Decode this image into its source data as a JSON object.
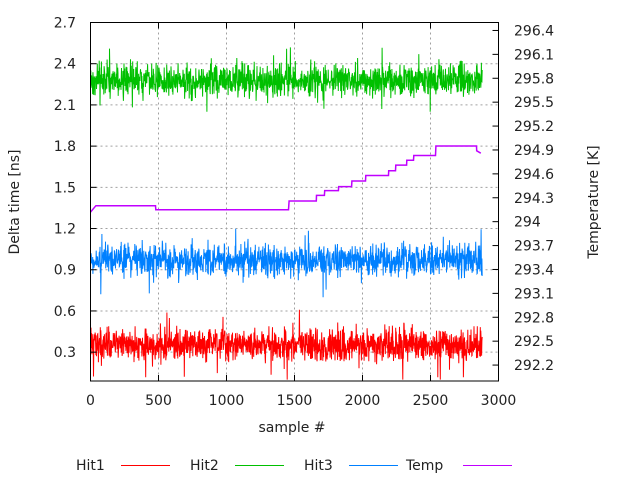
{
  "chart_data": {
    "type": "line",
    "xlabel": "sample #",
    "ylabel": "Delta time [ns]",
    "y2label": "Temperature [K]",
    "xlim": [
      0,
      3000
    ],
    "ylim": [
      0.09,
      2.7
    ],
    "y2lim": [
      292.0,
      296.5
    ],
    "x_ticks": [
      "0",
      "500",
      "1000",
      "1500",
      "2000",
      "2500",
      "3000"
    ],
    "y_ticks": [
      "0.3",
      "0.6",
      "0.9",
      "1.2",
      "1.5",
      "1.8",
      "2.1",
      "2.4",
      "2.7"
    ],
    "y2_ticks": [
      "292.2",
      "292.5",
      "292.8",
      "293.1",
      "293.4",
      "293.7",
      "294",
      "294.3",
      "294.6",
      "294.9",
      "295.2",
      "295.5",
      "295.8",
      "296.1",
      "296.4"
    ],
    "grid": true,
    "legend_placement": "bottom",
    "series": [
      {
        "name": "Hit1",
        "axis": "y",
        "color": "#ff0000",
        "x_range": [
          0,
          2880
        ],
        "mean": 0.35,
        "typical_range": [
          0.23,
          0.47
        ],
        "extreme_range": [
          0.1,
          0.65
        ]
      },
      {
        "name": "Hit2",
        "axis": "y",
        "color": "#00c000",
        "x_range": [
          0,
          2880
        ],
        "mean": 2.28,
        "typical_range": [
          2.16,
          2.4
        ],
        "extreme_range": [
          2.05,
          2.53
        ]
      },
      {
        "name": "Hit3",
        "axis": "y",
        "color": "#0080ff",
        "x_range": [
          0,
          2880
        ],
        "mean": 0.97,
        "typical_range": [
          0.86,
          1.09
        ],
        "extreme_range": [
          0.7,
          1.26
        ]
      },
      {
        "name": "Temp",
        "axis": "y2",
        "color": "#c000ff",
        "points": [
          [
            0,
            294.12
          ],
          [
            40,
            294.2
          ],
          [
            478,
            294.2
          ],
          [
            480,
            294.15
          ],
          [
            1456,
            294.15
          ],
          [
            1460,
            294.26
          ],
          [
            1660,
            294.26
          ],
          [
            1662,
            294.33
          ],
          [
            1720,
            294.33
          ],
          [
            1722,
            294.39
          ],
          [
            1823,
            294.39
          ],
          [
            1825,
            294.44
          ],
          [
            1920,
            294.44
          ],
          [
            1922,
            294.51
          ],
          [
            2022,
            294.51
          ],
          [
            2024,
            294.58
          ],
          [
            2191,
            294.58
          ],
          [
            2193,
            294.64
          ],
          [
            2243,
            294.64
          ],
          [
            2245,
            294.71
          ],
          [
            2324,
            294.71
          ],
          [
            2326,
            294.77
          ],
          [
            2375,
            294.77
          ],
          [
            2377,
            294.83
          ],
          [
            2537,
            294.83
          ],
          [
            2540,
            294.95
          ],
          [
            2838,
            294.95
          ],
          [
            2840,
            294.89
          ],
          [
            2870,
            294.86
          ]
        ]
      }
    ]
  }
}
